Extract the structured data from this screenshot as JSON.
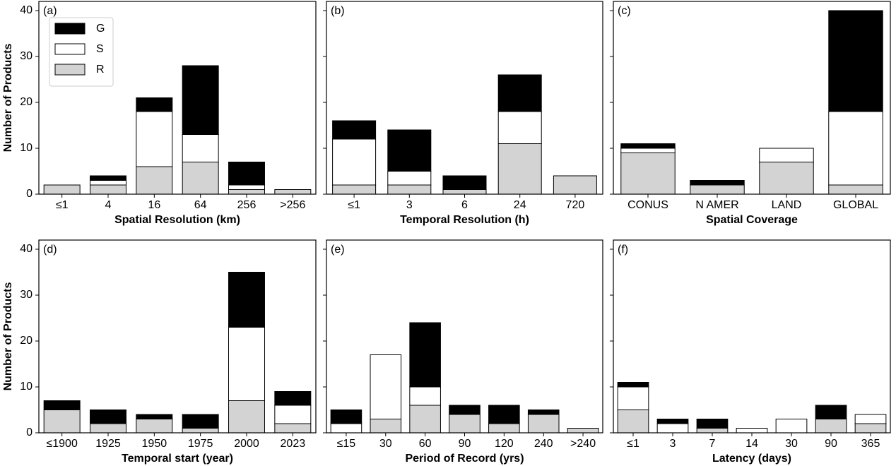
{
  "chart_data": [
    {
      "type": "bar",
      "stacked": true,
      "panel_label": "(a)",
      "xlabel": "Spatial Resolution (km)",
      "ylabel": "Number of Products",
      "legend": "upper left",
      "categories": [
        "≤1",
        "4",
        "16",
        "64",
        "256",
        ">256"
      ],
      "series": [
        {
          "name": "G",
          "color": "#000000",
          "values": [
            0,
            1,
            3,
            15,
            5,
            0
          ]
        },
        {
          "name": "S",
          "color": "#ffffff",
          "values": [
            0,
            1,
            12,
            6,
            1,
            0
          ]
        },
        {
          "name": "R",
          "color": "#d3d3d3",
          "values": [
            2,
            2,
            6,
            7,
            1,
            1
          ]
        }
      ],
      "ylim": [
        0,
        42
      ],
      "yticks": [
        0,
        10,
        20,
        30,
        40
      ]
    },
    {
      "type": "bar",
      "stacked": true,
      "panel_label": "(b)",
      "xlabel": "Temporal Resolution (h)",
      "categories": [
        "≤1",
        "3",
        "6",
        "24",
        "720"
      ],
      "series": [
        {
          "color": "#000000",
          "values": [
            4,
            9,
            3,
            8,
            0
          ]
        },
        {
          "color": "#ffffff",
          "values": [
            10,
            3,
            0,
            7,
            0
          ]
        },
        {
          "color": "#d3d3d3",
          "values": [
            2,
            2,
            1,
            11,
            4
          ]
        }
      ],
      "ylim": [
        0,
        42
      ],
      "yticks": [
        0,
        10,
        20,
        30,
        40
      ]
    },
    {
      "type": "bar",
      "stacked": true,
      "panel_label": "(c)",
      "xlabel": "Spatial Coverage",
      "categories": [
        "CONUS",
        "N AMER",
        "LAND",
        "GLOBAL"
      ],
      "series": [
        {
          "color": "#000000",
          "values": [
            1,
            1,
            0,
            22
          ]
        },
        {
          "color": "#ffffff",
          "values": [
            1,
            0,
            3,
            16
          ]
        },
        {
          "color": "#d3d3d3",
          "values": [
            9,
            2,
            7,
            2
          ]
        }
      ],
      "ylim": [
        0,
        42
      ],
      "yticks": [
        0,
        10,
        20,
        30,
        40
      ]
    },
    {
      "type": "bar",
      "stacked": true,
      "panel_label": "(d)",
      "xlabel": "Temporal start (year)",
      "ylabel": "Number of Products",
      "categories": [
        "≤1900",
        "1925",
        "1950",
        "1975",
        "2000",
        "2023"
      ],
      "series": [
        {
          "color": "#000000",
          "values": [
            2,
            3,
            1,
            3,
            12,
            3
          ]
        },
        {
          "color": "#ffffff",
          "values": [
            0,
            0,
            0,
            0,
            16,
            4
          ]
        },
        {
          "color": "#d3d3d3",
          "values": [
            5,
            2,
            3,
            1,
            7,
            2
          ]
        }
      ],
      "ylim": [
        0,
        42
      ],
      "yticks": [
        0,
        10,
        20,
        30,
        40
      ]
    },
    {
      "type": "bar",
      "stacked": true,
      "panel_label": "(e)",
      "xlabel": "Period of Record (yrs)",
      "categories": [
        "≤15",
        "30",
        "60",
        "90",
        "120",
        "240",
        ">240"
      ],
      "series": [
        {
          "color": "#000000",
          "values": [
            3,
            0,
            14,
            2,
            4,
            1,
            0
          ]
        },
        {
          "color": "#ffffff",
          "values": [
            2,
            14,
            4,
            0,
            0,
            0,
            0
          ]
        },
        {
          "color": "#d3d3d3",
          "values": [
            0,
            3,
            6,
            4,
            2,
            4,
            1
          ]
        }
      ],
      "ylim": [
        0,
        42
      ],
      "yticks": [
        0,
        10,
        20,
        30,
        40
      ]
    },
    {
      "type": "bar",
      "stacked": true,
      "panel_label": "(f)",
      "xlabel": "Latency (days)",
      "categories": [
        "≤1",
        "3",
        "7",
        "14",
        "30",
        "90",
        "365"
      ],
      "series": [
        {
          "color": "#000000",
          "values": [
            1,
            1,
            2,
            0,
            0,
            3,
            0
          ]
        },
        {
          "color": "#ffffff",
          "values": [
            5,
            2,
            0,
            1,
            3,
            0,
            2
          ]
        },
        {
          "color": "#d3d3d3",
          "values": [
            5,
            0,
            1,
            0,
            0,
            3,
            2
          ]
        }
      ],
      "ylim": [
        0,
        42
      ],
      "yticks": [
        0,
        10,
        20,
        30,
        40
      ]
    }
  ]
}
